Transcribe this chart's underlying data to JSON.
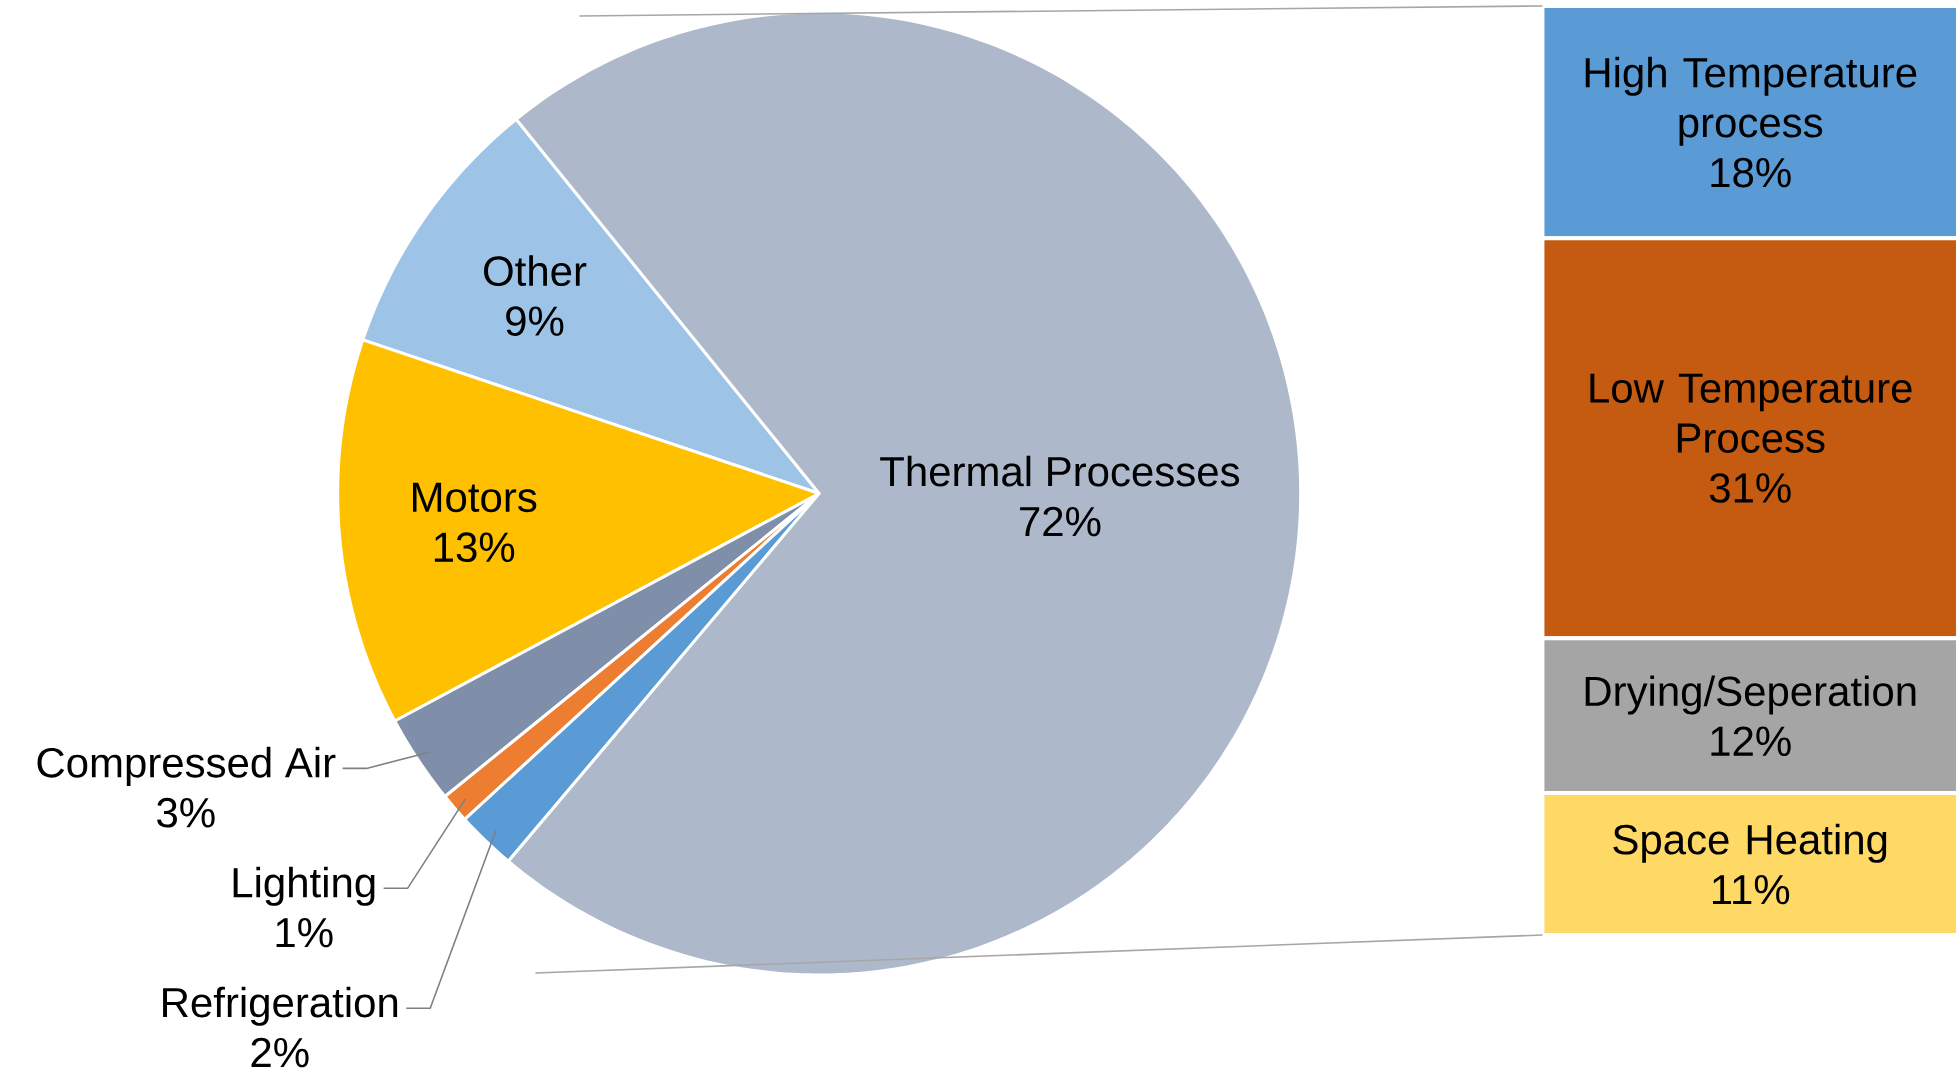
{
  "chart_data": [
    {
      "type": "pie",
      "categories": [
        "Other",
        "Motors",
        "Compressed Air",
        "Lighting",
        "Refrigeration",
        "Thermal Processes"
      ],
      "values": [
        9,
        13,
        3,
        1,
        2,
        72
      ],
      "colors": [
        "#9dc3e6",
        "#ffc000",
        "#7f8fa9",
        "#ed7d31",
        "#5b9bd5",
        "#adb9ca"
      ],
      "value_labels": [
        "9%",
        "13%",
        "3%",
        "1%",
        "2%",
        "72%"
      ]
    },
    {
      "type": "bar",
      "stacked": true,
      "categories": [
        null
      ],
      "series": [
        {
          "name": "Space Heating",
          "color": "#ffd966",
          "values": [
            11
          ],
          "value_labels": [
            "11%"
          ]
        },
        {
          "name": "Drying/Seperation",
          "color": "#a5a5a5",
          "values": [
            12
          ],
          "value_labels": [
            "12%"
          ]
        },
        {
          "name": "Low Temperature Process",
          "color": "#c55a11",
          "values": [
            31
          ],
          "value_labels": [
            "31%"
          ]
        },
        {
          "name": "High Temperature process",
          "color": "#5b9bd5",
          "values": [
            18
          ],
          "value_labels": [
            "18%"
          ]
        }
      ]
    }
  ]
}
